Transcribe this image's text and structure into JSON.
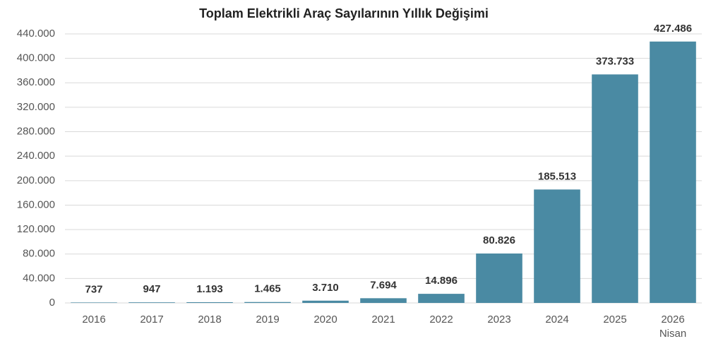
{
  "chart_data": {
    "type": "bar",
    "title": "Toplam Elektrikli Araç Sayılarının Yıllık Değişimi",
    "categories": [
      "2016",
      "2017",
      "2018",
      "2019",
      "2020",
      "2021",
      "2022",
      "2023",
      "2024",
      "2025",
      "2026 Nisan"
    ],
    "values": [
      737,
      947,
      1193,
      1465,
      3710,
      7694,
      14896,
      80826,
      185513,
      373733,
      427486
    ],
    "value_labels": [
      "737",
      "947",
      "1.193",
      "1.465",
      "3.710",
      "7.694",
      "14.896",
      "80.826",
      "185.513",
      "373.733",
      "427.486"
    ],
    "color": "#4a8aa3",
    "ylim": [
      0,
      440000
    ],
    "yticks": [
      0,
      {
        "value": 40000,
        "label": "40.000"
      },
      {
        "value": 80000,
        "label": "80.000"
      },
      {
        "value": 120000,
        "label": "120.000"
      },
      {
        "value": 160000,
        "label": "160.000"
      },
      {
        "value": 200000,
        "label": "200.000"
      },
      {
        "value": 240000,
        "label": "240.000"
      },
      {
        "value": 280000,
        "label": "280.000"
      },
      {
        "value": 320000,
        "label": "320.000"
      },
      {
        "value": 360000,
        "label": "360.000"
      },
      {
        "value": 400000,
        "label": "400.000"
      },
      {
        "value": 440000,
        "label": "440.000"
      }
    ],
    "grid": true
  }
}
